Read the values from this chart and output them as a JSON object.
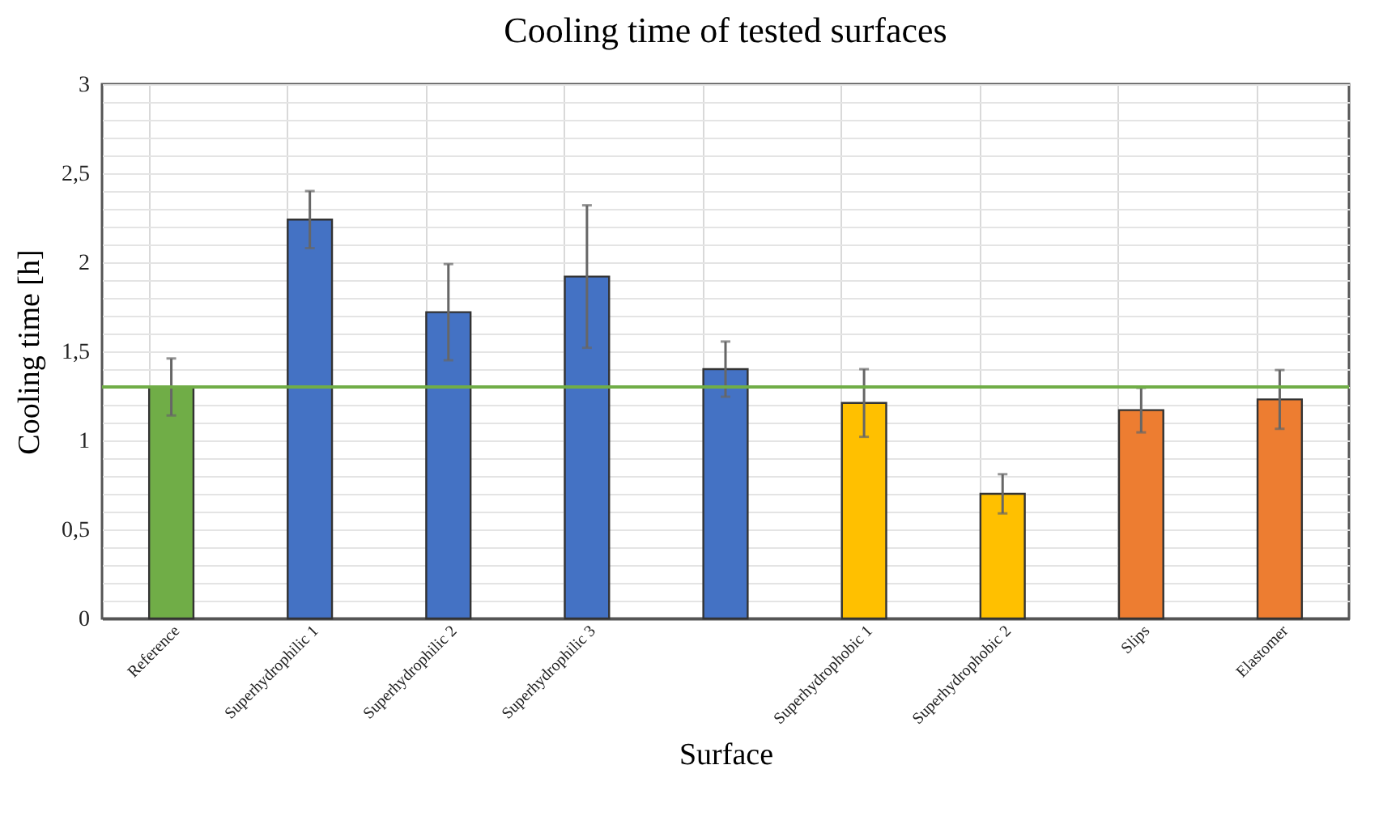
{
  "chart_data": {
    "type": "bar",
    "title": "Cooling time of tested surfaces",
    "xlabel": "Surface",
    "ylabel": "Cooling time [h]",
    "categories": [
      "Reference",
      "Superhydrophilic 1",
      "Superhydrophilic 2",
      "Superhydrophilic 3",
      null,
      "Superhydrophobic 1",
      "Superhydrophobic 2",
      "Slips",
      "Elastomer"
    ],
    "values": [
      1.3,
      2.24,
      1.72,
      1.92,
      1.4,
      1.21,
      0.7,
      1.17,
      1.23
    ],
    "colors": [
      "#70ad47",
      "#4472c4",
      "#4472c4",
      "#4472c4",
      "#4472c4",
      "#ffc000",
      "#ffc000",
      "#ed7d31",
      "#ed7d31"
    ],
    "errors": [
      0.16,
      0.16,
      0.27,
      0.4,
      0.155,
      0.19,
      0.11,
      0.125,
      0.165
    ],
    "ylim": [
      0,
      3
    ],
    "yticks": [
      0,
      {
        "value": 0.1,
        "label": null
      },
      {
        "value": 0.2,
        "label": null
      },
      {
        "value": 0.3,
        "label": null
      },
      {
        "value": 0.4,
        "label": null
      },
      {
        "value": 0.5,
        "label": "0,5"
      },
      {
        "value": 0.6,
        "label": null
      },
      {
        "value": 0.7,
        "label": null
      },
      {
        "value": 0.8,
        "label": null
      },
      {
        "value": 0.9,
        "label": null
      },
      1,
      {
        "value": 1.1,
        "label": null
      },
      {
        "value": 1.2,
        "label": null
      },
      {
        "value": 1.3,
        "label": null
      },
      {
        "value": 1.4,
        "label": null
      },
      {
        "value": 1.5,
        "label": "1,5"
      },
      {
        "value": 1.6,
        "label": null
      },
      {
        "value": 1.7,
        "label": null
      },
      {
        "value": 1.8,
        "label": null
      },
      {
        "value": 1.9,
        "label": null
      },
      2,
      {
        "value": 2.1,
        "label": null
      },
      {
        "value": 2.2,
        "label": null
      },
      {
        "value": 2.3,
        "label": null
      },
      {
        "value": 2.4,
        "label": null
      },
      {
        "value": 2.5,
        "label": "2,5"
      },
      {
        "value": 2.6,
        "label": null
      },
      {
        "value": 2.7,
        "label": null
      },
      {
        "value": 2.8,
        "label": null
      },
      {
        "value": 2.9,
        "label": null
      },
      3
    ],
    "ref_lines": [
      {
        "axis": "y",
        "value": 1.3,
        "color": "#70ad47"
      }
    ],
    "grid": true
  }
}
